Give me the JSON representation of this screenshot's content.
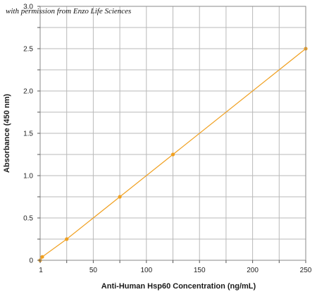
{
  "chart_data": {
    "type": "line",
    "title": "",
    "annotation": "with permission from Enzo Life Sciences",
    "xlabel": "Anti-Human Hsp60 Concentration (ng/mL)",
    "ylabel": "Absorbance (450 nm)",
    "xlim": [
      0,
      250
    ],
    "ylim": [
      0,
      3.0
    ],
    "x_ticks": [
      1,
      50,
      100,
      150,
      200,
      250
    ],
    "x_tick_labels": [
      "1",
      "50",
      "100",
      "150",
      "200",
      "250"
    ],
    "y_ticks": [
      0,
      0.5,
      1.0,
      1.5,
      2.0,
      2.5,
      3.0
    ],
    "y_tick_labels": [
      "0",
      "0.5",
      "1.0",
      "1.5",
      "2.0",
      "2.5",
      "3.0"
    ],
    "grid": true,
    "series": [
      {
        "color": "#f0a020",
        "x": [
          0,
          2,
          25,
          75,
          125,
          250
        ],
        "y": [
          0.0,
          0.04,
          0.25,
          0.75,
          1.25,
          2.5
        ]
      }
    ]
  }
}
